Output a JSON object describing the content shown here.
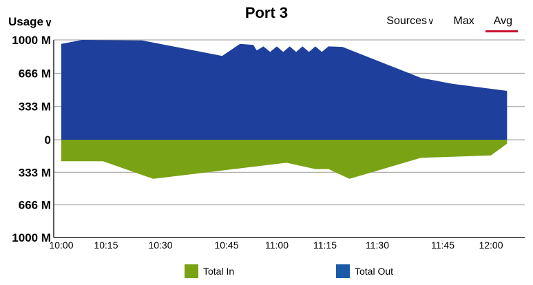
{
  "header": {
    "title": "Port 3",
    "usage_label": "Usage",
    "sources_label": "Sources",
    "max_label": "Max",
    "avg_label": "Avg"
  },
  "legend": {
    "total_in": "Total In",
    "total_out": "Total Out"
  },
  "colors": {
    "total_in": "#7aa215",
    "total_out": "#1f3f9c",
    "legend_total_out": "#1b5aa6",
    "active_underline": "#c8102e"
  },
  "chart_data": {
    "type": "area",
    "title": "Port 3",
    "ylabel": "Usage",
    "y_axis_labels": [
      "1000 M",
      "666 M",
      "333 M",
      "0",
      "333 M",
      "666 M",
      "1000 M"
    ],
    "x_axis_labels": [
      "10:00",
      "10:15",
      "10:30",
      "10:45",
      "11:00",
      "11:15",
      "11:30",
      "11:45",
      "12:00"
    ],
    "ylim": [
      -1000,
      1000
    ],
    "series": [
      {
        "name": "Total Out",
        "points": [
          [
            "10:00",
            960
          ],
          [
            "10:07",
            1000
          ],
          [
            "10:25",
            995
          ],
          [
            "10:44",
            840
          ],
          [
            "10:49",
            960
          ],
          [
            "10:53",
            950
          ],
          [
            "10:54",
            895
          ],
          [
            "10:56",
            935
          ],
          [
            "10:58",
            880
          ],
          [
            "11:00",
            935
          ],
          [
            "11:02",
            880
          ],
          [
            "11:04",
            935
          ],
          [
            "11:06",
            880
          ],
          [
            "11:08",
            935
          ],
          [
            "11:10",
            880
          ],
          [
            "11:12",
            935
          ],
          [
            "11:14",
            880
          ],
          [
            "11:16",
            935
          ],
          [
            "11:20",
            930
          ],
          [
            "11:40",
            620
          ],
          [
            "11:48",
            560
          ],
          [
            "12:05",
            490
          ]
        ]
      },
      {
        "name": "Total In",
        "points": [
          [
            "10:00",
            -220
          ],
          [
            "10:14",
            -220
          ],
          [
            "10:28",
            -400
          ],
          [
            "11:03",
            -235
          ],
          [
            "11:12",
            -300
          ],
          [
            "11:16",
            -300
          ],
          [
            "11:22",
            -400
          ],
          [
            "11:40",
            -185
          ],
          [
            "12:00",
            -160
          ],
          [
            "12:05",
            -40
          ]
        ]
      }
    ],
    "grid": true,
    "legend_position": "bottom"
  }
}
